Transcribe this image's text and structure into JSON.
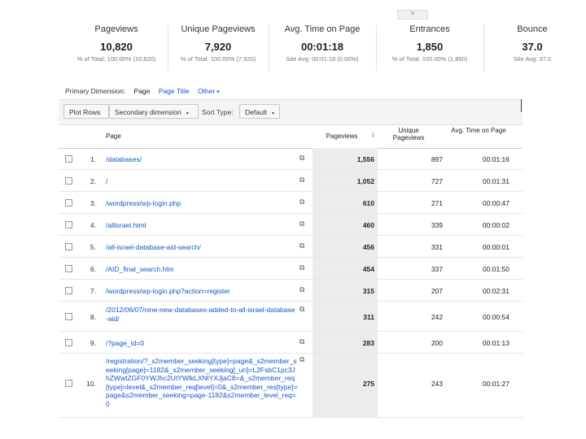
{
  "top_handle": "˅",
  "metrics": [
    {
      "label": "Pageviews",
      "value": "10,820",
      "sub": "% of Total: 100.00% (10,820)"
    },
    {
      "label": "Unique Pageviews",
      "value": "7,920",
      "sub": "% of Total: 100.00% (7,920)"
    },
    {
      "label": "Avg. Time on Page",
      "value": "00:01:18",
      "sub": "Site Avg: 00:01:18 (0.00%)"
    },
    {
      "label": "Entrances",
      "value": "1,850",
      "sub": "% of Total: 100.00% (1,850)"
    },
    {
      "label": "Bounce",
      "value": "37.0",
      "sub": "Site Avg: 37.0"
    }
  ],
  "dimensions": {
    "label": "Primary Dimension:",
    "current": "Page",
    "option1": "Page Title",
    "other": "Other",
    "other_caret": "▾"
  },
  "toolbar": {
    "plot_rows": "Plot Rows",
    "secondary": "Secondary dimension",
    "sort_type": "Sort Type:",
    "default": "Default",
    "caret": "▾"
  },
  "table": {
    "headers": {
      "page": "Page",
      "pageviews": "Pageviews",
      "unique": "Unique Pageviews",
      "avg_time": "Avg. Time on Page",
      "sort_icon": "↓"
    },
    "ext_icon": "⧉",
    "rows": [
      {
        "index": "1.",
        "page": "/databases/",
        "pageviews": "1,556",
        "unique": "897",
        "avg_time": "00:01:16"
      },
      {
        "index": "2.",
        "page": "/",
        "pageviews": "1,052",
        "unique": "727",
        "avg_time": "00:01:31"
      },
      {
        "index": "3.",
        "page": "/wordpress/wp-login.php",
        "pageviews": "610",
        "unique": "271",
        "avg_time": "00:00:47"
      },
      {
        "index": "4.",
        "page": "/allisrael.html",
        "pageviews": "460",
        "unique": "339",
        "avg_time": "00:00:02"
      },
      {
        "index": "5.",
        "page": "/all-israel-database-aid-search/",
        "pageviews": "456",
        "unique": "331",
        "avg_time": "00:00:01"
      },
      {
        "index": "6.",
        "page": "/AID_final_search.htm",
        "pageviews": "454",
        "unique": "337",
        "avg_time": "00:01:50"
      },
      {
        "index": "7.",
        "page": "/wordpress/wp-login.php?action=register",
        "pageviews": "315",
        "unique": "207",
        "avg_time": "00:02:31"
      },
      {
        "index": "8.",
        "page": "/2012/06/07/nine-new-databases-added-to-all-israel-database-aid/",
        "pageviews": "311",
        "unique": "242",
        "avg_time": "00:00:54"
      },
      {
        "index": "9.",
        "page": "/?page_id=0",
        "pageviews": "283",
        "unique": "200",
        "avg_time": "00:01:13"
      },
      {
        "index": "10.",
        "page": "/registration/?_s2member_seeking[type]=page&_s2member_seeking[page]=1182&_s2member_seeking[_uri]=L2FsbC1pc3JhZWwtZGF0YWJhc2UtYWlkLXNlYXJjaC8=&_s2member_req[type]=level&_s2member_req[level]=0&_s2member_res[type]=page&s2member_seeking=page-1182&s2member_level_req=0",
        "pageviews": "275",
        "unique": "243",
        "avg_time": "00:01:27"
      }
    ]
  }
}
